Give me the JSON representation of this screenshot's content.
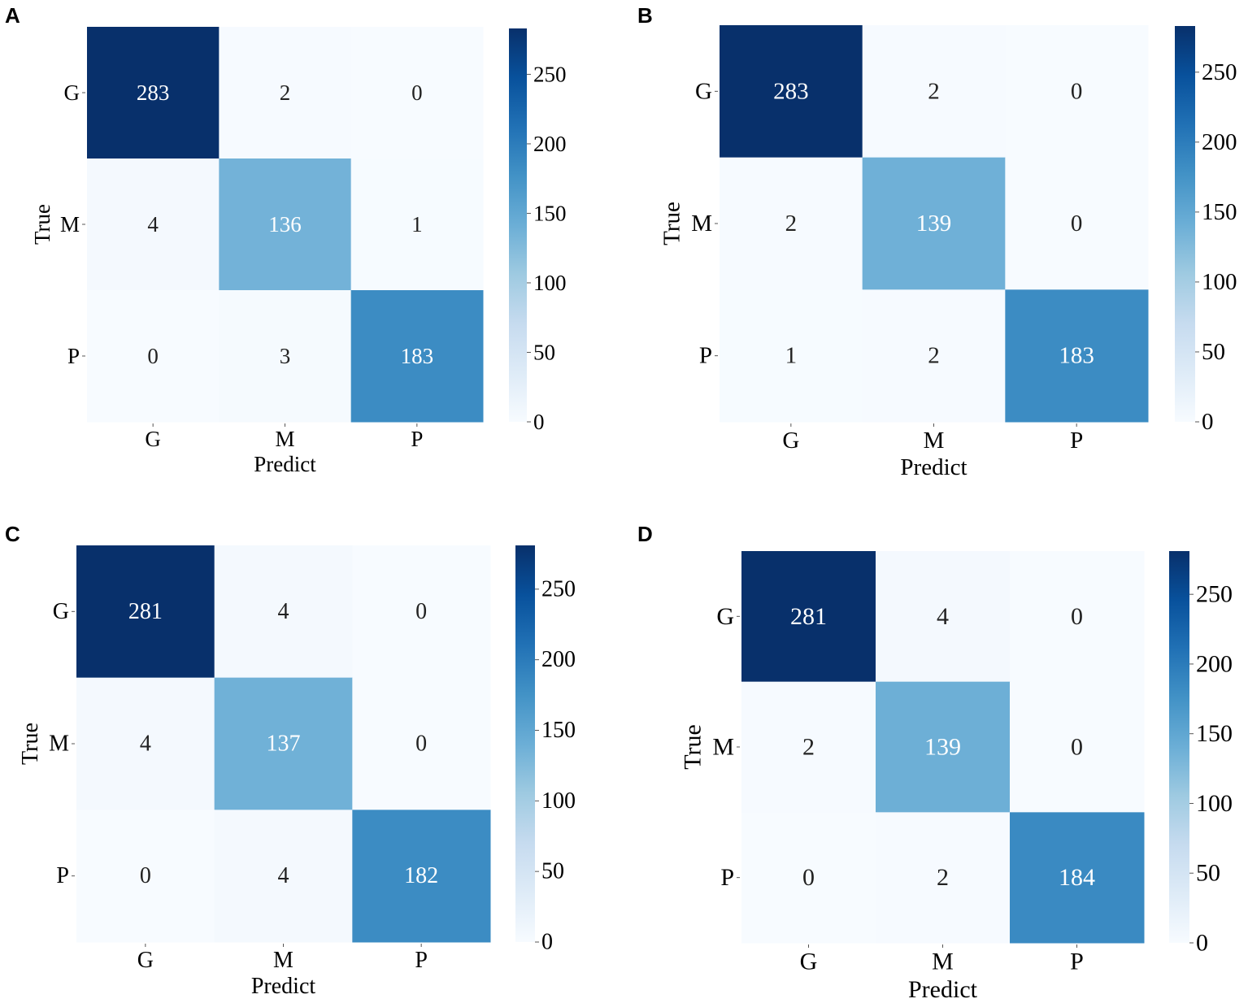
{
  "figure": {
    "colormap": {
      "name": "Blues",
      "stops": [
        "#f7fbff",
        "#deebf7",
        "#c6dbef",
        "#9ecae1",
        "#6baed6",
        "#4292c6",
        "#2171b5",
        "#08519c",
        "#08306b"
      ]
    },
    "text_colors": {
      "dark": "#222222",
      "light": "#ffffff"
    }
  },
  "chart_data": [
    {
      "type": "heatmap",
      "panel_label": "A",
      "xlabel": "Predict",
      "ylabel": "True",
      "x_categories": [
        "G",
        "M",
        "P"
      ],
      "y_categories": [
        "G",
        "M",
        "P"
      ],
      "values": [
        [
          283,
          2,
          0
        ],
        [
          4,
          136,
          1
        ],
        [
          0,
          3,
          183
        ]
      ],
      "value_labels": [
        [
          "283",
          "2",
          "0"
        ],
        [
          "4",
          "136",
          "1"
        ],
        [
          "0",
          "3",
          "183"
        ]
      ],
      "colorbar": {
        "range": [
          0,
          283
        ],
        "ticks": [
          0,
          50,
          100,
          150,
          200,
          250
        ],
        "tick_labels": [
          "0",
          "50",
          "100",
          "150",
          "200",
          "250"
        ]
      }
    },
    {
      "type": "heatmap",
      "panel_label": "B",
      "xlabel": "Predict",
      "ylabel": "True",
      "x_categories": [
        "G",
        "M",
        "P"
      ],
      "y_categories": [
        "G",
        "M",
        "P"
      ],
      "values": [
        [
          283,
          2,
          0
        ],
        [
          2,
          139,
          0
        ],
        [
          1,
          2,
          183
        ]
      ],
      "value_labels": [
        [
          "283",
          "2",
          "0"
        ],
        [
          "2",
          "139",
          "0"
        ],
        [
          "1",
          "2",
          "183"
        ]
      ],
      "colorbar": {
        "range": [
          0,
          283
        ],
        "ticks": [
          0,
          50,
          100,
          150,
          200,
          250
        ],
        "tick_labels": [
          "0",
          "50",
          "100",
          "150",
          "200",
          "250"
        ]
      }
    },
    {
      "type": "heatmap",
      "panel_label": "C",
      "xlabel": "Predict",
      "ylabel": "True",
      "x_categories": [
        "G",
        "M",
        "P"
      ],
      "y_categories": [
        "G",
        "M",
        "P"
      ],
      "values": [
        [
          281,
          4,
          0
        ],
        [
          4,
          137,
          0
        ],
        [
          0,
          4,
          182
        ]
      ],
      "value_labels": [
        [
          "281",
          "4",
          "0"
        ],
        [
          "4",
          "137",
          "0"
        ],
        [
          "0",
          "4",
          "182"
        ]
      ],
      "colorbar": {
        "range": [
          0,
          281
        ],
        "ticks": [
          0,
          50,
          100,
          150,
          200,
          250
        ],
        "tick_labels": [
          "0",
          "50",
          "100",
          "150",
          "200",
          "250"
        ]
      }
    },
    {
      "type": "heatmap",
      "panel_label": "D",
      "xlabel": "Predict",
      "ylabel": "True",
      "x_categories": [
        "G",
        "M",
        "P"
      ],
      "y_categories": [
        "G",
        "M",
        "P"
      ],
      "values": [
        [
          281,
          4,
          0
        ],
        [
          2,
          139,
          0
        ],
        [
          0,
          2,
          184
        ]
      ],
      "value_labels": [
        [
          "281",
          "4",
          "0"
        ],
        [
          "2",
          "139",
          "0"
        ],
        [
          "0",
          "2",
          "184"
        ]
      ],
      "colorbar": {
        "range": [
          0,
          281
        ],
        "ticks": [
          0,
          50,
          100,
          150,
          200,
          250
        ],
        "tick_labels": [
          "0",
          "50",
          "100",
          "150",
          "200",
          "250"
        ]
      }
    }
  ]
}
